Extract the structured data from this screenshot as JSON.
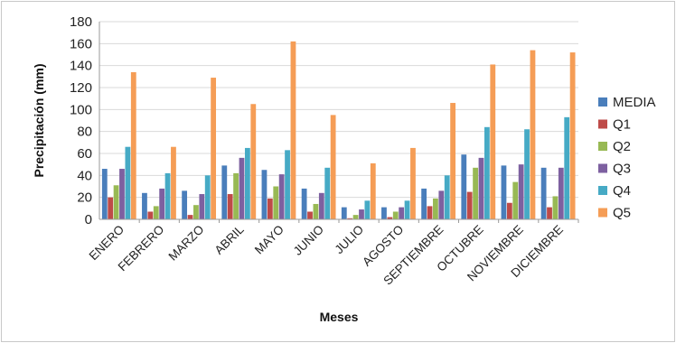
{
  "chart_data": {
    "type": "bar",
    "title": "",
    "xlabel": "Meses",
    "ylabel": "Precipitación (mm)",
    "ylim": [
      0,
      180
    ],
    "yticks": [
      0,
      20,
      40,
      60,
      80,
      100,
      120,
      140,
      160,
      180
    ],
    "grid": true,
    "legend_position": "right",
    "categories": [
      "ENERO",
      "FEBRERO",
      "MARZO",
      "ABRIL",
      "MAYO",
      "JUNIO",
      "JULIO",
      "AGOSTO",
      "SEPTIEMBRE",
      "OCTUBRE",
      "NOVIEMBRE",
      "DICIEMBRE"
    ],
    "series": [
      {
        "name": "MEDIA",
        "color": "#4a7ebb",
        "values": [
          46,
          24,
          26,
          49,
          45,
          28,
          11,
          11,
          28,
          59,
          49,
          47
        ]
      },
      {
        "name": "Q1",
        "color": "#be4b48",
        "values": [
          20,
          7,
          4,
          23,
          19,
          7,
          1,
          2,
          12,
          25,
          15,
          11
        ]
      },
      {
        "name": "Q2",
        "color": "#98b954",
        "values": [
          31,
          12,
          13,
          42,
          30,
          14,
          4,
          7,
          19,
          47,
          34,
          21
        ]
      },
      {
        "name": "Q3",
        "color": "#7d60a0",
        "values": [
          46,
          28,
          23,
          56,
          41,
          24,
          9,
          11,
          26,
          56,
          50,
          47
        ]
      },
      {
        "name": "Q4",
        "color": "#46aac5",
        "values": [
          66,
          42,
          40,
          65,
          63,
          47,
          17,
          17,
          40,
          84,
          82,
          93
        ]
      },
      {
        "name": "Q5",
        "color": "#f59d56",
        "values": [
          134,
          66,
          129,
          105,
          162,
          95,
          51,
          65,
          106,
          141,
          154,
          152
        ]
      }
    ]
  }
}
